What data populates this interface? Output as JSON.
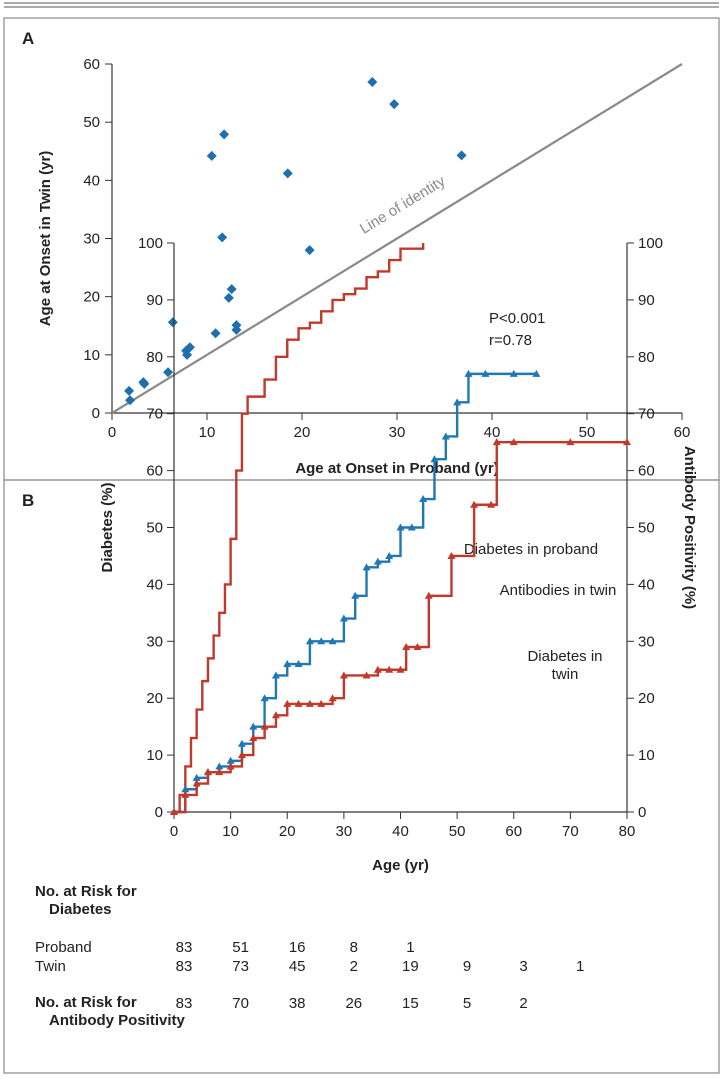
{
  "chart_data": [
    {
      "type": "scatter",
      "panel": "A",
      "x_label": "Age at Onset in Proband (yr)",
      "y_label": "Age at Onset in Twin (yr)",
      "xlim": [
        0,
        60
      ],
      "ylim": [
        0,
        60
      ],
      "xticks": [
        0,
        10,
        20,
        30,
        40,
        50,
        60
      ],
      "yticks": [
        0,
        10,
        20,
        30,
        40,
        50,
        60
      ],
      "color": "#1f6fae",
      "reference_line_color": "#8a8a8a",
      "annotations": [
        "Line of identity",
        "P<0.001",
        "r=0.78"
      ],
      "x": [
        1.8,
        1.9,
        3.4,
        3.3,
        5.9,
        6.4,
        7.8,
        8.2,
        7.9,
        10.5,
        10.9,
        11.6,
        11.8,
        12.3,
        12.6,
        13.1,
        13.1,
        18.5,
        20.8,
        27.4,
        29.7,
        36.8
      ],
      "values": [
        3.8,
        2.2,
        5.0,
        5.3,
        7.0,
        15.6,
        10.7,
        11.3,
        10.0,
        44.2,
        13.7,
        30.2,
        47.9,
        19.8,
        21.3,
        14.3,
        15.1,
        41.2,
        28.0,
        56.9,
        53.1,
        44.3
      ]
    },
    {
      "type": "line",
      "panel": "B",
      "step": true,
      "x_label": "Age (yr)",
      "y_label": "Diabetes (%)",
      "y2_label": "Antibody Positivity (%)",
      "xlim": [
        0,
        80
      ],
      "ylim": [
        0,
        100
      ],
      "y2lim": [
        0,
        100
      ],
      "xticks": [
        0,
        10,
        20,
        30,
        40,
        50,
        60,
        70,
        80
      ],
      "yticks": [
        0,
        10,
        20,
        30,
        40,
        50,
        60,
        70,
        80,
        90,
        100
      ],
      "y2ticks": [
        0,
        10,
        20,
        30,
        40,
        50,
        60,
        70,
        80,
        90,
        100
      ],
      "series": [
        {
          "name": "Diabetes in proband",
          "color": "#c0392b",
          "marker": "none",
          "x": [
            0,
            1,
            2,
            3,
            4,
            5,
            6,
            7,
            8,
            9,
            10,
            11,
            12,
            13,
            14,
            16,
            18,
            20,
            22,
            24,
            26,
            28,
            30,
            32,
            34,
            36,
            38,
            40,
            44
          ],
          "values": [
            0,
            3,
            8,
            13,
            18,
            23,
            27,
            31,
            35,
            40,
            48,
            60,
            70,
            73,
            73,
            76,
            80,
            83,
            85,
            86,
            88,
            90,
            91,
            92,
            94,
            95,
            97,
            99,
            100
          ]
        },
        {
          "name": "Antibodies in twin",
          "color": "#1f78b4",
          "marker": "triangle",
          "axis": "y2",
          "x": [
            0,
            2,
            4,
            6,
            8,
            10,
            12,
            14,
            16,
            18,
            20,
            22,
            24,
            26,
            28,
            30,
            32,
            34,
            36,
            38,
            40,
            42,
            44,
            46,
            48,
            50,
            52,
            55,
            60,
            64
          ],
          "values": [
            0,
            4,
            6,
            7,
            8,
            9,
            12,
            15,
            20,
            24,
            26,
            26,
            30,
            30,
            30,
            34,
            38,
            43,
            44,
            45,
            50,
            50,
            55,
            62,
            66,
            72,
            77,
            77,
            77,
            77
          ]
        },
        {
          "name": "Diabetes in twin",
          "color": "#c0392b",
          "marker": "triangle",
          "x": [
            0,
            2,
            4,
            6,
            8,
            10,
            12,
            14,
            16,
            18,
            20,
            22,
            24,
            26,
            28,
            30,
            34,
            36,
            38,
            40,
            41,
            43,
            45,
            49,
            53,
            56,
            57,
            60,
            70,
            80
          ],
          "values": [
            0,
            3,
            5,
            7,
            7,
            8,
            10,
            13,
            15,
            17,
            19,
            19,
            19,
            19,
            20,
            24,
            24,
            25,
            25,
            25,
            29,
            29,
            38,
            45,
            54,
            54,
            65,
            65,
            65,
            65
          ]
        }
      ],
      "risk_table": {
        "diabetes_header": "No. at Risk for Diabetes",
        "rows": [
          {
            "label": "Proband",
            "values": [
              83,
              51,
              16,
              8,
              1
            ]
          },
          {
            "label": "Twin",
            "values": [
              83,
              73,
              45,
              2,
              19,
              9,
              3,
              1
            ]
          }
        ],
        "antibody_header": "No. at Risk for Antibody Positivity",
        "antibody_values": [
          83,
          70,
          38,
          26,
          15,
          5,
          2
        ]
      }
    }
  ]
}
